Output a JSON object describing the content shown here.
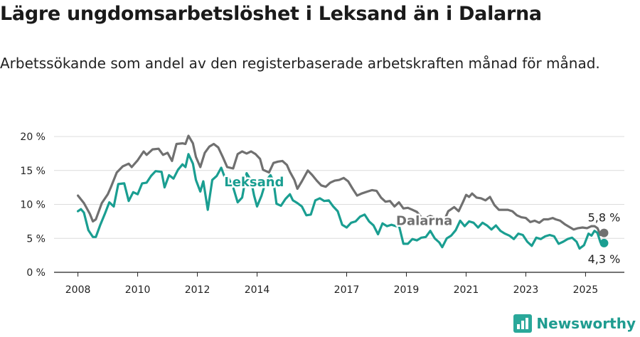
{
  "title": "Lägre ungdomsarbetslöshet i Leksand än i Dalarna",
  "subtitle": "Arbetssökande som andel av den registerbaserade arbetskraften månad för månad.",
  "brand": {
    "name": "Newsworthy",
    "icon": "bar-chart-icon"
  },
  "chart_data": {
    "type": "line",
    "title": "Lägre ungdomsarbetslöshet i Leksand än i Dalarna",
    "subtitle": "Arbetssökande som andel av den registerbaserade arbetskraften månad för månad.",
    "xlabel": "",
    "ylabel": "",
    "xlim": [
      2007.2,
      2026.3
    ],
    "ylim": [
      0,
      20
    ],
    "grid": true,
    "legend": "inline labels",
    "y_ticks": [
      0,
      5,
      10,
      15,
      20
    ],
    "y_tick_labels": [
      "0 %",
      "5 %",
      "10 %",
      "15 %",
      "20 %"
    ],
    "x_ticks": [
      2008,
      2010,
      2012,
      2014,
      2017,
      2019,
      2021,
      2023,
      2025
    ],
    "x_tick_labels": [
      "2008",
      "2010",
      "2012",
      "2014",
      "2017",
      "2019",
      "2021",
      "2023",
      "2025"
    ],
    "colors": {
      "dalarna": "#707070",
      "leksand": "#1a9e91"
    },
    "series": [
      {
        "name": "Dalarna",
        "color": "#707070",
        "end_label": "5,8 %",
        "points": [
          [
            2008.0,
            11.3
          ],
          [
            2008.2,
            10.2
          ],
          [
            2008.4,
            8.6
          ],
          [
            2008.5,
            7.5
          ],
          [
            2008.6,
            7.8
          ],
          [
            2008.8,
            10.2
          ],
          [
            2009.0,
            11.5
          ],
          [
            2009.1,
            12.5
          ],
          [
            2009.3,
            14.7
          ],
          [
            2009.5,
            15.6
          ],
          [
            2009.7,
            16.0
          ],
          [
            2009.8,
            15.5
          ],
          [
            2010.0,
            16.5
          ],
          [
            2010.2,
            17.8
          ],
          [
            2010.3,
            17.3
          ],
          [
            2010.5,
            18.1
          ],
          [
            2010.7,
            18.2
          ],
          [
            2010.85,
            17.3
          ],
          [
            2011.0,
            17.6
          ],
          [
            2011.15,
            16.4
          ],
          [
            2011.3,
            18.9
          ],
          [
            2011.5,
            19.0
          ],
          [
            2011.6,
            18.9
          ],
          [
            2011.7,
            20.1
          ],
          [
            2011.85,
            19.0
          ],
          [
            2011.95,
            17.0
          ],
          [
            2012.1,
            15.5
          ],
          [
            2012.25,
            17.6
          ],
          [
            2012.4,
            18.5
          ],
          [
            2012.55,
            18.9
          ],
          [
            2012.7,
            18.4
          ],
          [
            2012.85,
            17.0
          ],
          [
            2013.0,
            15.5
          ],
          [
            2013.2,
            15.3
          ],
          [
            2013.35,
            17.4
          ],
          [
            2013.5,
            17.8
          ],
          [
            2013.65,
            17.5
          ],
          [
            2013.8,
            17.8
          ],
          [
            2013.95,
            17.4
          ],
          [
            2014.1,
            16.7
          ],
          [
            2014.2,
            15.1
          ],
          [
            2014.4,
            14.7
          ],
          [
            2014.55,
            16.1
          ],
          [
            2014.7,
            16.3
          ],
          [
            2014.85,
            16.4
          ],
          [
            2015.0,
            15.8
          ],
          [
            2015.1,
            14.8
          ],
          [
            2015.25,
            13.6
          ],
          [
            2015.35,
            12.3
          ],
          [
            2015.5,
            13.4
          ],
          [
            2015.7,
            15.0
          ],
          [
            2015.85,
            14.3
          ],
          [
            2016.0,
            13.5
          ],
          [
            2016.15,
            12.8
          ],
          [
            2016.3,
            12.6
          ],
          [
            2016.45,
            13.2
          ],
          [
            2016.6,
            13.5
          ],
          [
            2016.75,
            13.6
          ],
          [
            2016.9,
            13.9
          ],
          [
            2017.05,
            13.4
          ],
          [
            2017.2,
            12.3
          ],
          [
            2017.35,
            11.3
          ],
          [
            2017.5,
            11.6
          ],
          [
            2017.7,
            11.9
          ],
          [
            2017.85,
            12.1
          ],
          [
            2018.0,
            12.0
          ],
          [
            2018.15,
            11.0
          ],
          [
            2018.3,
            10.4
          ],
          [
            2018.45,
            10.5
          ],
          [
            2018.6,
            9.7
          ],
          [
            2018.75,
            10.3
          ],
          [
            2018.9,
            9.4
          ],
          [
            2019.05,
            9.5
          ],
          [
            2019.2,
            9.2
          ],
          [
            2019.35,
            8.9
          ],
          [
            2019.5,
            8.1
          ],
          [
            2019.65,
            8.0
          ],
          [
            2019.8,
            8.3
          ],
          [
            2019.95,
            8.0
          ],
          [
            2020.1,
            7.3
          ],
          [
            2020.25,
            7.5
          ],
          [
            2020.4,
            9.0
          ],
          [
            2020.6,
            9.6
          ],
          [
            2020.75,
            9.0
          ],
          [
            2020.9,
            10.4
          ],
          [
            2021.0,
            11.4
          ],
          [
            2021.1,
            11.1
          ],
          [
            2021.2,
            11.6
          ],
          [
            2021.35,
            11.0
          ],
          [
            2021.5,
            10.9
          ],
          [
            2021.65,
            10.6
          ],
          [
            2021.8,
            11.1
          ],
          [
            2021.95,
            9.9
          ],
          [
            2022.1,
            9.2
          ],
          [
            2022.25,
            9.2
          ],
          [
            2022.4,
            9.2
          ],
          [
            2022.55,
            9.0
          ],
          [
            2022.7,
            8.4
          ],
          [
            2022.85,
            8.1
          ],
          [
            2023.0,
            8.0
          ],
          [
            2023.15,
            7.4
          ],
          [
            2023.3,
            7.6
          ],
          [
            2023.45,
            7.3
          ],
          [
            2023.6,
            7.8
          ],
          [
            2023.75,
            7.8
          ],
          [
            2023.9,
            8.0
          ],
          [
            2024.0,
            7.8
          ],
          [
            2024.15,
            7.6
          ],
          [
            2024.3,
            7.1
          ],
          [
            2024.45,
            6.7
          ],
          [
            2024.6,
            6.3
          ],
          [
            2024.75,
            6.5
          ],
          [
            2024.9,
            6.6
          ],
          [
            2025.05,
            6.5
          ],
          [
            2025.2,
            6.8
          ],
          [
            2025.3,
            6.8
          ],
          [
            2025.4,
            6.5
          ],
          [
            2025.5,
            5.5
          ],
          [
            2025.62,
            5.8
          ]
        ]
      },
      {
        "name": "Leksand",
        "color": "#1a9e91",
        "end_label": "4,3 %",
        "points": [
          [
            2008.0,
            9.0
          ],
          [
            2008.1,
            9.3
          ],
          [
            2008.2,
            8.8
          ],
          [
            2008.35,
            6.2
          ],
          [
            2008.5,
            5.2
          ],
          [
            2008.6,
            5.2
          ],
          [
            2008.75,
            7.0
          ],
          [
            2008.9,
            8.6
          ],
          [
            2009.05,
            10.3
          ],
          [
            2009.2,
            9.7
          ],
          [
            2009.35,
            13.0
          ],
          [
            2009.55,
            13.1
          ],
          [
            2009.7,
            10.5
          ],
          [
            2009.85,
            11.8
          ],
          [
            2010.0,
            11.5
          ],
          [
            2010.15,
            13.1
          ],
          [
            2010.3,
            13.2
          ],
          [
            2010.45,
            14.2
          ],
          [
            2010.6,
            14.9
          ],
          [
            2010.8,
            14.8
          ],
          [
            2010.9,
            12.5
          ],
          [
            2011.05,
            14.3
          ],
          [
            2011.2,
            13.8
          ],
          [
            2011.35,
            15.1
          ],
          [
            2011.5,
            15.9
          ],
          [
            2011.6,
            15.5
          ],
          [
            2011.7,
            17.4
          ],
          [
            2011.85,
            16.0
          ],
          [
            2011.95,
            13.6
          ],
          [
            2012.1,
            11.9
          ],
          [
            2012.2,
            13.4
          ],
          [
            2012.35,
            9.2
          ],
          [
            2012.5,
            13.6
          ],
          [
            2012.65,
            14.2
          ],
          [
            2012.8,
            15.4
          ],
          [
            2012.95,
            13.6
          ],
          [
            2013.05,
            13.8
          ],
          [
            2013.2,
            12.5
          ],
          [
            2013.35,
            10.3
          ],
          [
            2013.5,
            11.0
          ],
          [
            2013.65,
            14.6
          ],
          [
            2013.8,
            13.5
          ],
          [
            2013.9,
            11.3
          ],
          [
            2014.0,
            9.7
          ],
          [
            2014.15,
            11.3
          ],
          [
            2014.3,
            13.5
          ],
          [
            2014.45,
            14.3
          ],
          [
            2014.55,
            13.4
          ],
          [
            2014.65,
            10.1
          ],
          [
            2014.8,
            9.8
          ],
          [
            2014.95,
            10.8
          ],
          [
            2015.1,
            11.5
          ],
          [
            2015.2,
            10.6
          ],
          [
            2015.35,
            10.2
          ],
          [
            2015.5,
            9.7
          ],
          [
            2015.65,
            8.4
          ],
          [
            2015.8,
            8.5
          ],
          [
            2015.95,
            10.6
          ],
          [
            2016.1,
            10.9
          ],
          [
            2016.25,
            10.5
          ],
          [
            2016.4,
            10.6
          ],
          [
            2016.55,
            9.7
          ],
          [
            2016.7,
            9.0
          ],
          [
            2016.85,
            7.0
          ],
          [
            2017.0,
            6.6
          ],
          [
            2017.15,
            7.3
          ],
          [
            2017.3,
            7.5
          ],
          [
            2017.45,
            8.2
          ],
          [
            2017.6,
            8.5
          ],
          [
            2017.75,
            7.5
          ],
          [
            2017.9,
            6.9
          ],
          [
            2018.05,
            5.6
          ],
          [
            2018.2,
            7.2
          ],
          [
            2018.35,
            6.8
          ],
          [
            2018.5,
            7.0
          ],
          [
            2018.65,
            6.8
          ],
          [
            2018.75,
            6.9
          ],
          [
            2018.9,
            4.2
          ],
          [
            2019.05,
            4.2
          ],
          [
            2019.2,
            4.9
          ],
          [
            2019.35,
            4.7
          ],
          [
            2019.5,
            5.1
          ],
          [
            2019.65,
            5.2
          ],
          [
            2019.8,
            6.1
          ],
          [
            2019.95,
            5.0
          ],
          [
            2020.1,
            4.4
          ],
          [
            2020.2,
            3.7
          ],
          [
            2020.35,
            5.0
          ],
          [
            2020.5,
            5.4
          ],
          [
            2020.65,
            6.2
          ],
          [
            2020.8,
            7.6
          ],
          [
            2020.95,
            6.8
          ],
          [
            2021.1,
            7.5
          ],
          [
            2021.25,
            7.3
          ],
          [
            2021.4,
            6.6
          ],
          [
            2021.55,
            7.3
          ],
          [
            2021.7,
            6.9
          ],
          [
            2021.85,
            6.3
          ],
          [
            2022.0,
            6.9
          ],
          [
            2022.15,
            6.1
          ],
          [
            2022.3,
            5.7
          ],
          [
            2022.45,
            5.4
          ],
          [
            2022.6,
            4.9
          ],
          [
            2022.75,
            5.7
          ],
          [
            2022.9,
            5.5
          ],
          [
            2023.05,
            4.5
          ],
          [
            2023.2,
            3.9
          ],
          [
            2023.35,
            5.1
          ],
          [
            2023.5,
            4.9
          ],
          [
            2023.65,
            5.3
          ],
          [
            2023.8,
            5.5
          ],
          [
            2023.95,
            5.3
          ],
          [
            2024.1,
            4.2
          ],
          [
            2024.25,
            4.5
          ],
          [
            2024.4,
            4.9
          ],
          [
            2024.55,
            5.1
          ],
          [
            2024.7,
            4.5
          ],
          [
            2024.8,
            3.5
          ],
          [
            2024.95,
            4.0
          ],
          [
            2025.1,
            5.7
          ],
          [
            2025.2,
            5.4
          ],
          [
            2025.3,
            6.1
          ],
          [
            2025.4,
            5.8
          ],
          [
            2025.5,
            4.4
          ],
          [
            2025.62,
            4.3
          ]
        ]
      }
    ]
  }
}
